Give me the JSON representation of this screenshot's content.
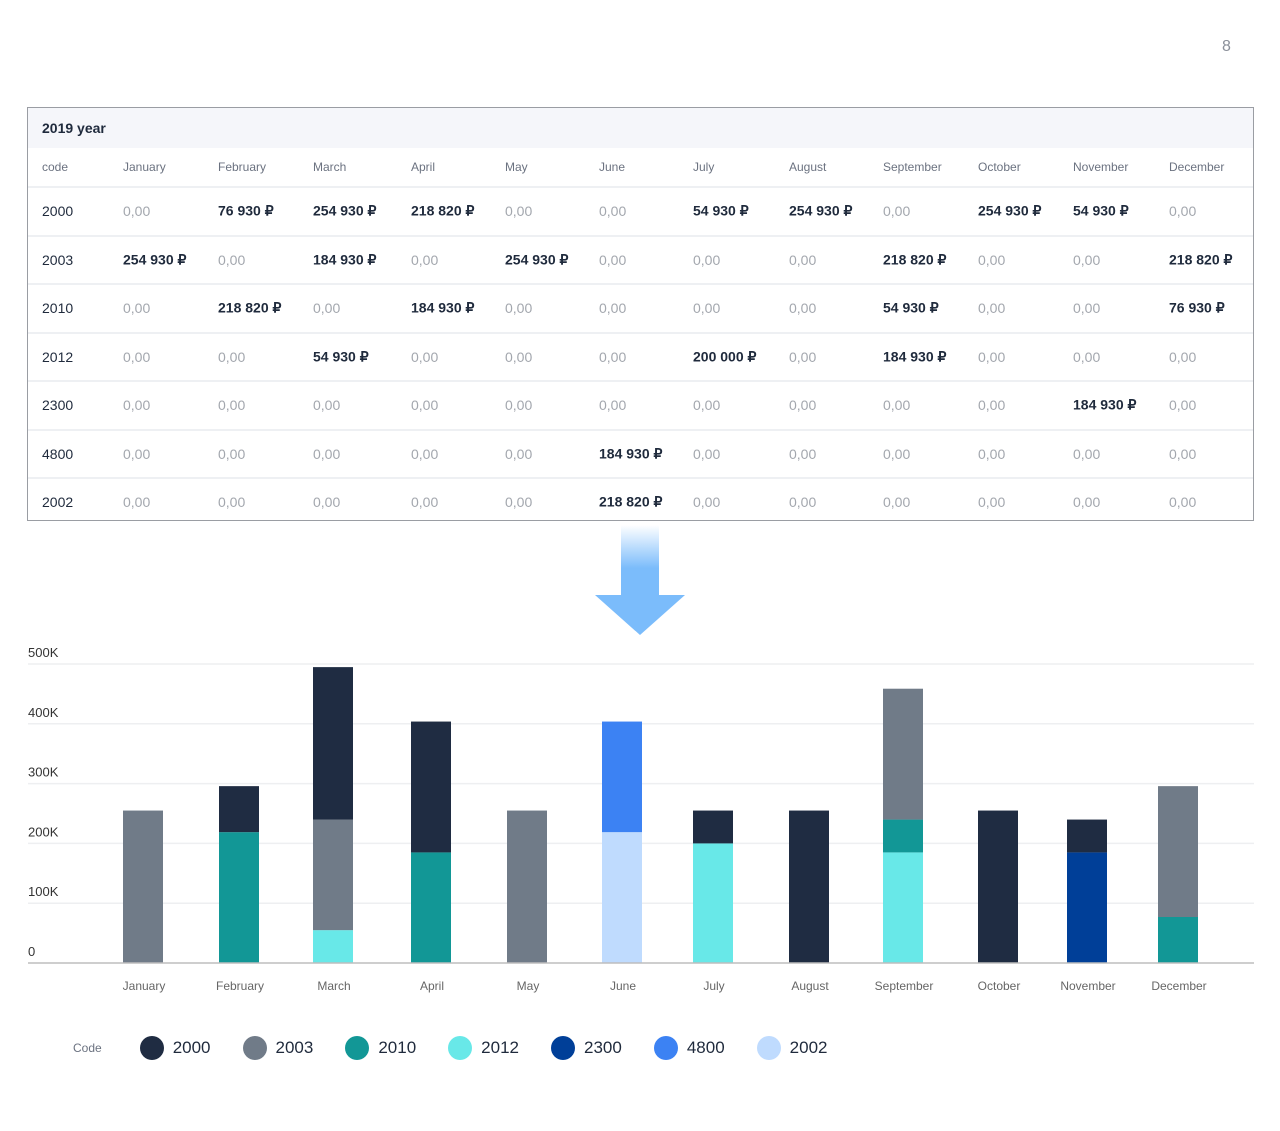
{
  "page_number": "8",
  "table": {
    "title": "2019 year",
    "code_header": "code",
    "months": [
      "January",
      "February",
      "March",
      "April",
      "May",
      "June",
      "July",
      "August",
      "September",
      "October",
      "November",
      "December"
    ],
    "rows": [
      {
        "code": "2000",
        "values": [
          "0,00",
          "76 930 ₽",
          "254 930 ₽",
          "218 820 ₽",
          "0,00",
          "0,00",
          "54 930 ₽",
          "254 930 ₽",
          "0,00",
          "254 930 ₽",
          "54 930 ₽",
          "0,00"
        ]
      },
      {
        "code": "2003",
        "values": [
          "254 930 ₽",
          "0,00",
          "184 930 ₽",
          "0,00",
          "254 930 ₽",
          "0,00",
          "0,00",
          "0,00",
          "218 820 ₽",
          "0,00",
          "0,00",
          "218 820 ₽"
        ]
      },
      {
        "code": "2010",
        "values": [
          "0,00",
          "218 820 ₽",
          "0,00",
          "184 930 ₽",
          "0,00",
          "0,00",
          "0,00",
          "0,00",
          "54 930 ₽",
          "0,00",
          "0,00",
          "76 930 ₽"
        ]
      },
      {
        "code": "2012",
        "values": [
          "0,00",
          "0,00",
          "54 930 ₽",
          "0,00",
          "0,00",
          "0,00",
          "200 000 ₽",
          "0,00",
          "184 930 ₽",
          "0,00",
          "0,00",
          "0,00"
        ]
      },
      {
        "code": "2300",
        "values": [
          "0,00",
          "0,00",
          "0,00",
          "0,00",
          "0,00",
          "0,00",
          "0,00",
          "0,00",
          "0,00",
          "0,00",
          "184 930 ₽",
          "0,00"
        ]
      },
      {
        "code": "4800",
        "values": [
          "0,00",
          "0,00",
          "0,00",
          "0,00",
          "0,00",
          "184 930 ₽",
          "0,00",
          "0,00",
          "0,00",
          "0,00",
          "0,00",
          "0,00"
        ]
      },
      {
        "code": "2002",
        "values": [
          "0,00",
          "0,00",
          "0,00",
          "0,00",
          "0,00",
          "218 820 ₽",
          "0,00",
          "0,00",
          "0,00",
          "0,00",
          "0,00",
          "0,00"
        ]
      }
    ]
  },
  "chart_data": {
    "type": "bar",
    "stacked": true,
    "categories": [
      "January",
      "February",
      "March",
      "April",
      "May",
      "June",
      "July",
      "August",
      "September",
      "October",
      "November",
      "December"
    ],
    "ylim": [
      0,
      500000
    ],
    "yticks": [
      0,
      100000,
      200000,
      300000,
      400000,
      500000
    ],
    "ytick_labels": [
      "0",
      "100K",
      "200K",
      "300K",
      "400K",
      "500K"
    ],
    "grid": true,
    "legend_position": "bottom",
    "legend_title": "Code",
    "series": [
      {
        "name": "2012",
        "color": "#68e8e8",
        "values": [
          0,
          0,
          54930,
          0,
          0,
          0,
          200000,
          0,
          184930,
          0,
          0,
          0
        ]
      },
      {
        "name": "2002",
        "color": "#bfdbfe",
        "values": [
          0,
          0,
          0,
          0,
          0,
          218820,
          0,
          0,
          0,
          0,
          0,
          0
        ]
      },
      {
        "name": "2010",
        "color": "#129796",
        "values": [
          0,
          218820,
          0,
          184930,
          0,
          0,
          0,
          0,
          54930,
          0,
          0,
          76930
        ]
      },
      {
        "name": "2300",
        "color": "#003f98",
        "values": [
          0,
          0,
          0,
          0,
          0,
          0,
          0,
          0,
          0,
          0,
          184930,
          0
        ]
      },
      {
        "name": "2003",
        "color": "#707b88",
        "values": [
          254930,
          0,
          184930,
          0,
          254930,
          0,
          0,
          0,
          218820,
          0,
          0,
          218820
        ]
      },
      {
        "name": "4800",
        "color": "#3c82f3",
        "values": [
          0,
          0,
          0,
          0,
          0,
          184930,
          0,
          0,
          0,
          0,
          0,
          0
        ]
      },
      {
        "name": "2000",
        "color": "#1f2c42",
        "values": [
          0,
          76930,
          254930,
          218820,
          0,
          0,
          54930,
          254930,
          0,
          254930,
          54930,
          0
        ]
      }
    ],
    "legend_order": [
      "2000",
      "2003",
      "2010",
      "2012",
      "2300",
      "4800",
      "2002"
    ]
  }
}
